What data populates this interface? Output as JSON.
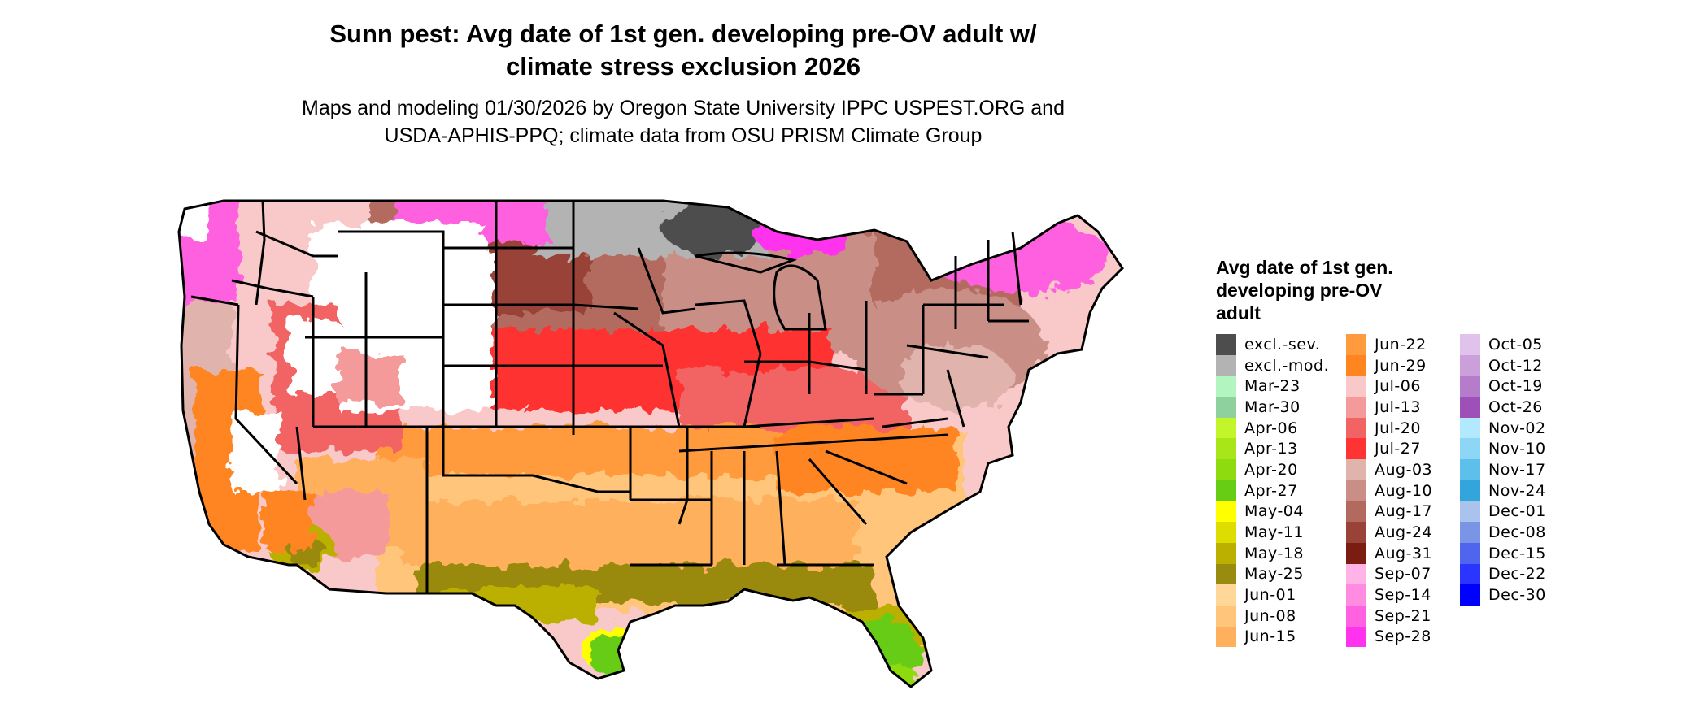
{
  "title": "Sunn pest: Avg date of 1st gen. developing pre-OV adult w/ climate stress exclusion 2026",
  "title_line1": "Sunn pest: Avg date of 1st gen. developing pre-OV adult w/",
  "title_line2": "climate stress exclusion 2026",
  "subtitle_line1": "Maps and modeling 01/30/2026 by Oregon State University IPPC USPEST.ORG and",
  "subtitle_line2": "USDA-APHIS-PPQ; climate data from OSU PRISM Climate Group",
  "legend": {
    "title": "Avg date of 1st gen. developing pre-OV adult",
    "columns": [
      [
        {
          "label": "excl.-sev.",
          "color": "#4d4d4d"
        },
        {
          "label": "excl.-mod.",
          "color": "#b3b3b3"
        },
        {
          "label": "Mar-23",
          "color": "#b2f5c0"
        },
        {
          "label": "Mar-30",
          "color": "#8fd19e"
        },
        {
          "label": "Apr-06",
          "color": "#c2f52a"
        },
        {
          "label": "Apr-13",
          "color": "#a8e619"
        },
        {
          "label": "Apr-20",
          "color": "#8edb10"
        },
        {
          "label": "Apr-27",
          "color": "#66cc14"
        },
        {
          "label": "May-04",
          "color": "#ffff00"
        },
        {
          "label": "May-11",
          "color": "#dddd00"
        },
        {
          "label": "May-18",
          "color": "#bbb000"
        },
        {
          "label": "May-25",
          "color": "#998a10"
        },
        {
          "label": "Jun-01",
          "color": "#ffd899"
        },
        {
          "label": "Jun-08",
          "color": "#ffc57a"
        },
        {
          "label": "Jun-15",
          "color": "#ffb05c"
        }
      ],
      [
        {
          "label": "Jun-22",
          "color": "#ff9a3d"
        },
        {
          "label": "Jun-29",
          "color": "#ff8520"
        },
        {
          "label": "Jul-06",
          "color": "#f9c9c9"
        },
        {
          "label": "Jul-13",
          "color": "#f49a9a"
        },
        {
          "label": "Jul-20",
          "color": "#f26464"
        },
        {
          "label": "Jul-27",
          "color": "#ff3333"
        },
        {
          "label": "Aug-03",
          "color": "#e0b3ac"
        },
        {
          "label": "Aug-10",
          "color": "#c98f86"
        },
        {
          "label": "Aug-17",
          "color": "#b36a5e"
        },
        {
          "label": "Aug-24",
          "color": "#994238"
        },
        {
          "label": "Aug-31",
          "color": "#7a1c12"
        },
        {
          "label": "Sep-07",
          "color": "#ffb3e6"
        },
        {
          "label": "Sep-14",
          "color": "#ff8ce0"
        },
        {
          "label": "Sep-21",
          "color": "#ff61e0"
        },
        {
          "label": "Sep-28",
          "color": "#ff33ee"
        }
      ],
      [
        {
          "label": "Oct-05",
          "color": "#e0c2ea"
        },
        {
          "label": "Oct-12",
          "color": "#cba0da"
        },
        {
          "label": "Oct-19",
          "color": "#b47cca"
        },
        {
          "label": "Oct-26",
          "color": "#9c50b8"
        },
        {
          "label": "Nov-02",
          "color": "#b3e9ff"
        },
        {
          "label": "Nov-10",
          "color": "#8ed6f5"
        },
        {
          "label": "Nov-17",
          "color": "#5ec0ea"
        },
        {
          "label": "Nov-24",
          "color": "#32a6dc"
        },
        {
          "label": "Dec-01",
          "color": "#a9c3ec"
        },
        {
          "label": "Dec-08",
          "color": "#7b95e6"
        },
        {
          "label": "Dec-15",
          "color": "#5065ee"
        },
        {
          "label": "Dec-22",
          "color": "#2a35ff"
        },
        {
          "label": "Dec-30",
          "color": "#0000ff"
        }
      ]
    ]
  }
}
